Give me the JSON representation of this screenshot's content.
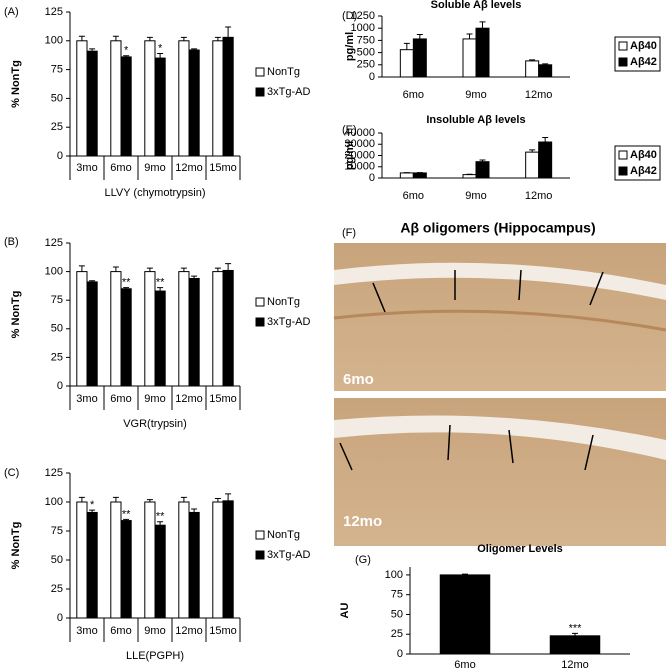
{
  "chart_data": [
    {
      "type": "bar",
      "panel": "(A)",
      "y_label": "% NonTg",
      "x_label": "LLVY (chymotrypsin)",
      "categories": [
        "3mo",
        "6mo",
        "9mo",
        "12mo",
        "15mo"
      ],
      "series": [
        {
          "name": "NonTg",
          "color": "#ffffff",
          "values": [
            100,
            100,
            100,
            100,
            100
          ],
          "errors": [
            4,
            4,
            3,
            3,
            3
          ]
        },
        {
          "name": "3xTg-AD",
          "color": "#000000",
          "values": [
            91,
            86,
            85,
            92,
            103
          ],
          "errors": [
            2,
            1,
            4,
            1,
            9
          ]
        }
      ],
      "annotations": [
        {
          "text": "*",
          "at": "6mo"
        },
        {
          "text": "*",
          "at": "9mo"
        }
      ],
      "ylim": [
        0,
        125
      ],
      "yticks": [
        0,
        25,
        50,
        75,
        100,
        125
      ]
    },
    {
      "type": "bar",
      "panel": "(B)",
      "y_label": "% NonTg",
      "x_label": "VGR(trypsin)",
      "categories": [
        "3mo",
        "6mo",
        "9mo",
        "12mo",
        "15mo"
      ],
      "series": [
        {
          "name": "NonTg",
          "color": "#ffffff",
          "values": [
            100,
            100,
            100,
            100,
            100
          ],
          "errors": [
            5,
            4,
            3,
            3,
            3
          ]
        },
        {
          "name": "3xTg-AD",
          "color": "#000000",
          "values": [
            91,
            85,
            83,
            94,
            101
          ],
          "errors": [
            1,
            1,
            3,
            2,
            6
          ]
        }
      ],
      "annotations": [
        {
          "text": "**",
          "at": "6mo"
        },
        {
          "text": "**",
          "at": "9mo"
        }
      ],
      "ylim": [
        0,
        125
      ],
      "yticks": [
        0,
        25,
        50,
        75,
        100,
        125
      ]
    },
    {
      "type": "bar",
      "panel": "(C)",
      "y_label": "% NonTg",
      "x_label": "LLE(PGPH)",
      "categories": [
        "3mo",
        "6mo",
        "9mo",
        "12mo",
        "15mo"
      ],
      "series": [
        {
          "name": "NonTg",
          "color": "#ffffff",
          "values": [
            100,
            100,
            100,
            100,
            100
          ],
          "errors": [
            4,
            4,
            2,
            4,
            3
          ]
        },
        {
          "name": "3xTg-AD",
          "color": "#000000",
          "values": [
            91,
            84,
            80,
            91,
            101
          ],
          "errors": [
            2,
            1,
            3,
            3,
            6
          ]
        }
      ],
      "annotations": [
        {
          "text": "*",
          "at": "3mo"
        },
        {
          "text": "**",
          "at": "6mo"
        },
        {
          "text": "**",
          "at": "9mo"
        }
      ],
      "ylim": [
        0,
        125
      ],
      "yticks": [
        0,
        25,
        50,
        75,
        100,
        125
      ]
    },
    {
      "type": "bar",
      "panel": "(D)",
      "title": "Soluble Aβ levels",
      "y_label": "pg/ml",
      "categories": [
        "6mo",
        "9mo",
        "12mo"
      ],
      "series": [
        {
          "name": "Aβ40",
          "color": "#ffffff",
          "values": [
            560,
            780,
            330
          ],
          "errors": [
            130,
            100,
            20
          ]
        },
        {
          "name": "Aβ42",
          "color": "#000000",
          "values": [
            780,
            1000,
            250
          ],
          "errors": [
            90,
            130,
            20
          ]
        }
      ],
      "ylim": [
        0,
        1250
      ],
      "yticks": [
        0,
        250,
        500,
        750,
        1000,
        1250
      ]
    },
    {
      "type": "bar",
      "panel": "(E)",
      "title": "Insoluble Aβ levels",
      "y_label": "pg/ml",
      "categories": [
        "6mo",
        "9mo",
        "12mo"
      ],
      "series": [
        {
          "name": "Aβ40",
          "color": "#ffffff",
          "values": [
            4500,
            3000,
            23000
          ],
          "errors": [
            300,
            300,
            2000
          ]
        },
        {
          "name": "Aβ42",
          "color": "#000000",
          "values": [
            4500,
            14500,
            32000
          ],
          "errors": [
            300,
            1500,
            4000
          ]
        }
      ],
      "ylim": [
        0,
        40000
      ],
      "yticks": [
        0,
        10000,
        20000,
        30000,
        40000
      ]
    },
    {
      "type": "bar",
      "panel": "(G)",
      "title": "Oligomer Levels",
      "y_label": "AU",
      "categories": [
        "6mo",
        "12mo"
      ],
      "values": [
        100,
        23
      ],
      "errors": [
        1,
        3
      ],
      "color": "#000000",
      "annotations": [
        {
          "text": "***",
          "at": "12mo"
        }
      ],
      "ylim": [
        0,
        110
      ],
      "yticks": [
        0,
        25,
        50,
        75,
        100
      ]
    }
  ],
  "figure_f": {
    "panel": "(F)",
    "title": "Aβ oligomers (Hippocampus)",
    "images": [
      {
        "label": "6mo"
      },
      {
        "label": "12mo"
      }
    ]
  }
}
